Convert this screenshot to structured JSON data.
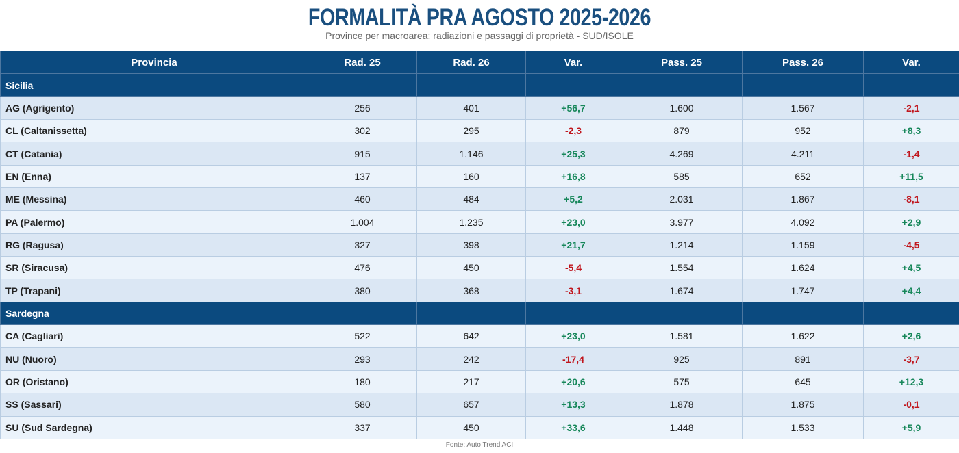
{
  "header": {
    "title": "FORMALITÀ PRA AGOSTO 2025-2026",
    "subtitle": "Province per macroarea: radiazioni e passaggi di proprietà - SUD/ISOLE"
  },
  "table": {
    "columns": [
      "Provincia",
      "Rad. 25",
      "Rad. 26",
      "Var.",
      "Pass. 25",
      "Pass. 26",
      "Var."
    ],
    "groups": [
      {
        "name": "Sicilia",
        "rows": [
          [
            "AG (Agrigento)",
            "256",
            "401",
            "+56,7",
            "1.600",
            "1.567",
            "-2,1"
          ],
          [
            "CL (Caltanissetta)",
            "302",
            "295",
            "-2,3",
            "879",
            "952",
            "+8,3"
          ],
          [
            "CT (Catania)",
            "915",
            "1.146",
            "+25,3",
            "4.269",
            "4.211",
            "-1,4"
          ],
          [
            "EN (Enna)",
            "137",
            "160",
            "+16,8",
            "585",
            "652",
            "+11,5"
          ],
          [
            "ME (Messina)",
            "460",
            "484",
            "+5,2",
            "2.031",
            "1.867",
            "-8,1"
          ],
          [
            "PA (Palermo)",
            "1.004",
            "1.235",
            "+23,0",
            "3.977",
            "4.092",
            "+2,9"
          ],
          [
            "RG (Ragusa)",
            "327",
            "398",
            "+21,7",
            "1.214",
            "1.159",
            "-4,5"
          ],
          [
            "SR (Siracusa)",
            "476",
            "450",
            "-5,4",
            "1.554",
            "1.624",
            "+4,5"
          ],
          [
            "TP (Trapani)",
            "380",
            "368",
            "-3,1",
            "1.674",
            "1.747",
            "+4,4"
          ]
        ]
      },
      {
        "name": "Sardegna",
        "rows": [
          [
            "CA (Cagliari)",
            "522",
            "642",
            "+23,0",
            "1.581",
            "1.622",
            "+2,6"
          ],
          [
            "NU (Nuoro)",
            "293",
            "242",
            "-17,4",
            "925",
            "891",
            "-3,7"
          ],
          [
            "OR (Oristano)",
            "180",
            "217",
            "+20,6",
            "575",
            "645",
            "+12,3"
          ],
          [
            "SS (Sassari)",
            "580",
            "657",
            "+13,3",
            "1.878",
            "1.875",
            "-0,1"
          ],
          [
            "SU (Sud Sardegna)",
            "337",
            "450",
            "+33,6",
            "1.448",
            "1.533",
            "+5,9"
          ]
        ]
      }
    ]
  },
  "footer": {
    "source": "Fonte: Auto Trend ACI"
  }
}
